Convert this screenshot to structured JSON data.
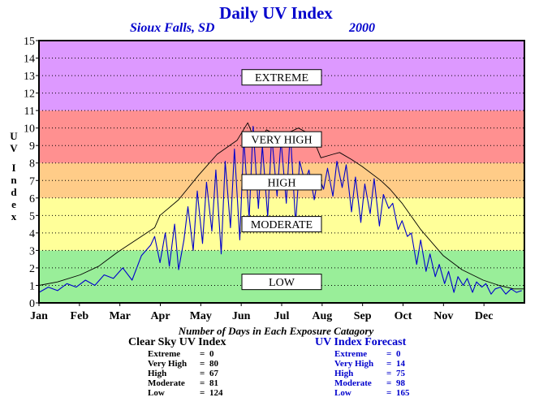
{
  "header": {
    "title": "Daily UV Index",
    "location": "Sioux Falls, SD",
    "year": "2000"
  },
  "y_axis_label_lines": [
    "U",
    "V",
    "",
    "I",
    "n",
    "d",
    "e",
    "x"
  ],
  "chart_data": {
    "type": "line",
    "title": "Daily UV Index",
    "ylabel": "UV Index",
    "ylim": [
      0,
      15
    ],
    "yticks": [
      0,
      1,
      2,
      3,
      4,
      5,
      6,
      7,
      8,
      9,
      10,
      11,
      12,
      13,
      14,
      15
    ],
    "grid": true,
    "months": [
      "Jan",
      "Feb",
      "Mar",
      "Apr",
      "May",
      "Jun",
      "Jul",
      "Aug",
      "Sep",
      "Oct",
      "Nov",
      "Dec"
    ],
    "bands": [
      {
        "label": "LOW",
        "from": 0,
        "to": 3,
        "color": "#99ee99",
        "label_y": 1.2
      },
      {
        "label": "MODERATE",
        "from": 3,
        "to": 6,
        "color": "#ffff99",
        "label_y": 4.5
      },
      {
        "label": "HIGH",
        "from": 6,
        "to": 8,
        "color": "#ffcc88",
        "label_y": 6.9
      },
      {
        "label": "VERY HIGH",
        "from": 8,
        "to": 11,
        "color": "#ff9090",
        "label_y": 9.35
      },
      {
        "label": "EXTREME",
        "from": 11,
        "to": 15,
        "color": "#dd99ff",
        "label_y": 12.9
      }
    ],
    "series": [
      {
        "name": "Clear Sky UV Index",
        "color": "#000000",
        "x_day": [
          1,
          15,
          32,
          46,
          60,
          74,
          88,
          92,
          106,
          121,
          135,
          150,
          158,
          165,
          172,
          182,
          196,
          206,
          213,
          222,
          227,
          236,
          244,
          258,
          265,
          274,
          288,
          305,
          319,
          335,
          347,
          358,
          366
        ],
        "y": [
          1.0,
          1.2,
          1.6,
          2.1,
          2.9,
          3.6,
          4.3,
          5.0,
          5.9,
          7.3,
          8.5,
          9.3,
          10.3,
          9.0,
          9.9,
          9.5,
          10.0,
          9.6,
          8.3,
          8.5,
          8.6,
          8.2,
          7.8,
          7.0,
          6.5,
          5.7,
          4.2,
          2.7,
          1.9,
          1.3,
          1.0,
          0.8,
          0.8
        ]
      },
      {
        "name": "UV Index Forecast",
        "color": "#0000cc",
        "x_day": [
          1,
          8,
          15,
          22,
          29,
          36,
          43,
          50,
          57,
          64,
          71,
          78,
          85,
          88,
          92,
          96,
          99,
          103,
          106,
          110,
          113,
          117,
          120,
          124,
          127,
          131,
          134,
          138,
          141,
          145,
          148,
          152,
          155,
          159,
          162,
          166,
          169,
          173,
          176,
          180,
          183,
          187,
          190,
          194,
          197,
          201,
          204,
          208,
          211,
          215,
          218,
          222,
          225,
          229,
          232,
          236,
          239,
          243,
          246,
          250,
          253,
          257,
          260,
          264,
          267,
          271,
          274,
          278,
          281,
          285,
          288,
          292,
          295,
          299,
          302,
          306,
          309,
          313,
          316,
          320,
          323,
          327,
          330,
          334,
          337,
          341,
          344,
          348,
          352,
          356,
          360,
          364
        ],
        "y": [
          0.6,
          0.9,
          0.7,
          1.1,
          0.9,
          1.3,
          1.0,
          1.6,
          1.4,
          2.0,
          1.3,
          2.7,
          3.3,
          3.8,
          2.3,
          4.0,
          2.1,
          4.5,
          1.9,
          3.6,
          5.5,
          3.0,
          6.4,
          3.4,
          6.9,
          4.1,
          7.6,
          2.8,
          8.1,
          4.3,
          8.8,
          3.6,
          9.4,
          4.8,
          10.1,
          5.4,
          9.0,
          4.9,
          9.6,
          6.1,
          9.3,
          5.7,
          9.8,
          4.5,
          8.1,
          6.9,
          7.6,
          5.9,
          7.3,
          6.5,
          7.7,
          6.1,
          8.1,
          6.6,
          7.9,
          5.2,
          7.2,
          4.6,
          6.8,
          5.1,
          7.1,
          4.4,
          6.2,
          5.4,
          5.7,
          4.2,
          4.7,
          3.8,
          4.0,
          2.2,
          3.6,
          1.8,
          2.8,
          1.5,
          2.2,
          1.1,
          1.8,
          0.6,
          1.5,
          1.0,
          1.4,
          0.6,
          1.2,
          0.9,
          1.1,
          0.5,
          0.8,
          0.9,
          0.5,
          0.8,
          0.6,
          0.7
        ]
      }
    ]
  },
  "counts": {
    "title": "Number of Days in Each Exposure Catagory",
    "clear_sky": {
      "heading": "Clear Sky UV Index",
      "rows": [
        {
          "label": "Extreme",
          "value": "0"
        },
        {
          "label": "Very High",
          "value": "80"
        },
        {
          "label": "High",
          "value": "67"
        },
        {
          "label": "Moderate",
          "value": "81"
        },
        {
          "label": "Low",
          "value": "124"
        }
      ]
    },
    "forecast": {
      "heading": "UV Index Forecast",
      "rows": [
        {
          "label": "Extreme",
          "value": "0"
        },
        {
          "label": "Very High",
          "value": "14"
        },
        {
          "label": "High",
          "value": "75"
        },
        {
          "label": "Moderate",
          "value": "98"
        },
        {
          "label": "Low",
          "value": "165"
        }
      ]
    }
  }
}
